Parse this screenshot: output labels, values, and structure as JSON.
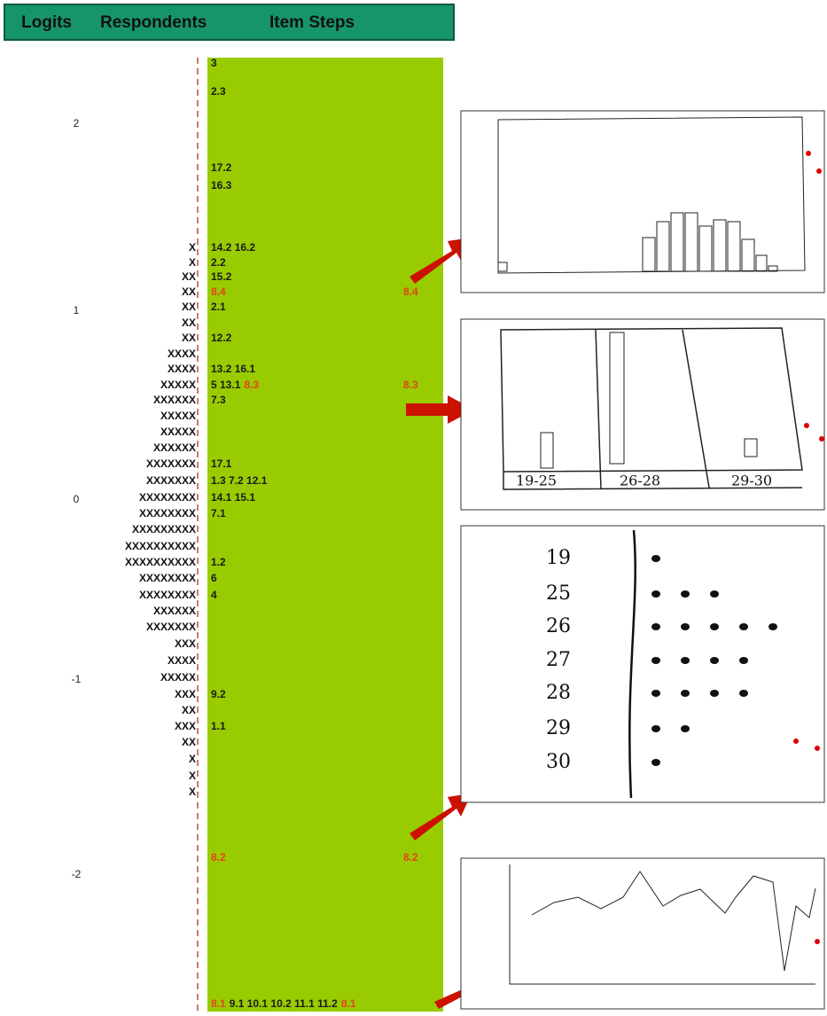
{
  "header": {
    "logits": "Logits",
    "respondents": "Respondents",
    "item_steps": "Item Steps"
  },
  "logits": [
    "2",
    "1",
    "0",
    "-1",
    "-2"
  ],
  "rows": [
    {
      "respondents": "",
      "items": [
        {
          "text": "3",
          "color": "#1a1a1a"
        }
      ]
    },
    {
      "respondents": "",
      "items": [
        {
          "text": "2.3",
          "color": "#1a1a1a"
        }
      ]
    },
    {
      "respondents": "",
      "items": [
        {
          "text": "17.2",
          "color": "#1a1a1a"
        }
      ]
    },
    {
      "respondents": "",
      "items": [
        {
          "text": "16.3",
          "color": "#1a1a1a"
        }
      ]
    },
    {
      "respondents": "X",
      "items": [
        {
          "text": "14.2 16.2",
          "color": "#1a1a1a"
        }
      ]
    },
    {
      "respondents": "X",
      "items": [
        {
          "text": "2.2",
          "color": "#1a1a1a"
        }
      ]
    },
    {
      "respondents": "XX",
      "items": [
        {
          "text": "15.2",
          "color": "#1a1a1a"
        }
      ]
    },
    {
      "respondents": "XX",
      "items": [
        {
          "text": "8.4",
          "color": "#e8401c"
        }
      ],
      "right": "8.4"
    },
    {
      "respondents": "XX",
      "items": [
        {
          "text": "2.1",
          "color": "#1a1a1a"
        }
      ]
    },
    {
      "respondents": "XX",
      "items": []
    },
    {
      "respondents": "XX",
      "items": [
        {
          "text": "12.2",
          "color": "#1a1a1a"
        }
      ]
    },
    {
      "respondents": "XXXX",
      "items": []
    },
    {
      "respondents": "XXXX",
      "items": [
        {
          "text": "13.2 16.1",
          "color": "#1a1a1a"
        }
      ]
    },
    {
      "respondents": "XXXXX",
      "items": [
        {
          "text": "5 13.1",
          "color": "#1a1a1a"
        },
        {
          "text": "8.3",
          "color": "#e8401c"
        }
      ],
      "right": "8.3"
    },
    {
      "respondents": "XXXXXX",
      "items": [
        {
          "text": "7.3",
          "color": "#1a1a1a"
        }
      ]
    },
    {
      "respondents": "XXXXX",
      "items": []
    },
    {
      "respondents": "XXXXX",
      "items": []
    },
    {
      "respondents": "XXXXXX",
      "items": []
    },
    {
      "respondents": "XXXXXXX",
      "items": [
        {
          "text": "17.1",
          "color": "#1a1a1a"
        }
      ]
    },
    {
      "respondents": "XXXXXXX",
      "items": [
        {
          "text": "1.3 7.2 12.1",
          "color": "#1a1a1a"
        }
      ]
    },
    {
      "respondents": "XXXXXXXX",
      "items": [
        {
          "text": "14.1 15.1",
          "color": "#1a1a1a"
        }
      ]
    },
    {
      "respondents": "XXXXXXXX",
      "items": [
        {
          "text": "7.1",
          "color": "#1a1a1a"
        }
      ]
    },
    {
      "respondents": "XXXXXXXXX",
      "items": []
    },
    {
      "respondents": "XXXXXXXXXX",
      "items": []
    },
    {
      "respondents": "XXXXXXXXXX",
      "items": [
        {
          "text": "1.2",
          "color": "#1a1a1a"
        }
      ]
    },
    {
      "respondents": "XXXXXXXX",
      "items": [
        {
          "text": "6",
          "color": "#1a1a1a"
        }
      ]
    },
    {
      "respondents": "XXXXXXXX",
      "items": [
        {
          "text": "4",
          "color": "#1a1a1a"
        }
      ]
    },
    {
      "respondents": "XXXXXX",
      "items": []
    },
    {
      "respondents": "XXXXXXX",
      "items": []
    },
    {
      "respondents": "XXX",
      "items": []
    },
    {
      "respondents": "XXXX",
      "items": []
    },
    {
      "respondents": "XXXXX",
      "items": []
    },
    {
      "respondents": "XXX",
      "items": [
        {
          "text": "9.2",
          "color": "#1a1a1a"
        }
      ]
    },
    {
      "respondents": "XX",
      "items": []
    },
    {
      "respondents": "XXX",
      "items": [
        {
          "text": "1.1",
          "color": "#1a1a1a"
        }
      ]
    },
    {
      "respondents": "XX",
      "items": []
    },
    {
      "respondents": "X",
      "items": []
    },
    {
      "respondents": "X",
      "items": []
    },
    {
      "respondents": "X",
      "items": []
    },
    {
      "respondents": "",
      "items": [
        {
          "text": "8.2",
          "color": "#e8401c"
        }
      ],
      "right": "8.2"
    },
    {
      "respondents": "",
      "items": [
        {
          "text": "8.1",
          "color": "#e8401c"
        },
        {
          "text": "9.1 10.1 10.2 11.1 11.2",
          "color": "#1a1a1a"
        },
        {
          "text": "8.1",
          "color": "#e8401c"
        }
      ]
    }
  ],
  "panel2": {
    "columns": [
      "19-25",
      "26-28",
      "29-30"
    ]
  },
  "panel3": {
    "rows": [
      {
        "label": "19",
        "dots": 1
      },
      {
        "label": "25",
        "dots": 3
      },
      {
        "label": "26",
        "dots": 5
      },
      {
        "label": "27",
        "dots": 4
      },
      {
        "label": "28",
        "dots": 4
      },
      {
        "label": "29",
        "dots": 2
      },
      {
        "label": "30",
        "dots": 1
      }
    ]
  }
}
